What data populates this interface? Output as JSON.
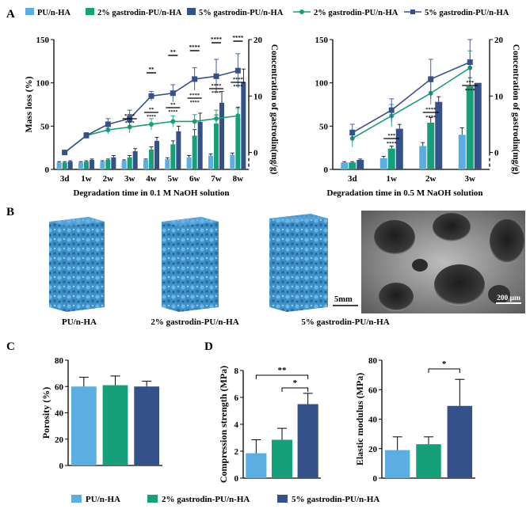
{
  "colors": {
    "c1": "#5aaee2",
    "c2": "#16a07a",
    "c3": "#35518a",
    "axis": "#000000"
  },
  "panel_labels": {
    "a": "A",
    "b": "B",
    "c": "C",
    "d": "D"
  },
  "legend_top": {
    "bar1": "PU/n-HA",
    "bar2": "2% gastrodin-PU/n-HA",
    "bar3": "5% gastrodin-PU/n-HA",
    "line2": "2% gastrodin-PU/n-HA",
    "line3": "5% gastrodin-PU/n-HA"
  },
  "legend_bottom": {
    "l1": "PU/n-HA",
    "l2": "2% gastrodin-PU/n-HA",
    "l3": "5% gastrodin-PU/n-HA"
  },
  "panel_b": {
    "captions": [
      "PU/n-HA",
      "2% gastrodin-PU/n-HA",
      "5% gastrodin-PU/n-HA"
    ],
    "scale_bar_3d": "5mm",
    "scale_bar_sem": "200 μm"
  },
  "chart_data": [
    {
      "id": "A1",
      "type": "bar",
      "title": "",
      "xlabel": "Degradation time in 0.1 M NaOH solution",
      "ylabel": "Mass loss (%)",
      "y2label": "Concentration of gastrodin(mg/g)",
      "categories": [
        "3d",
        "1w",
        "2w",
        "3w",
        "4w",
        "5w",
        "6w",
        "7w",
        "8w"
      ],
      "ylim": [
        0,
        150
      ],
      "yticks": [
        0,
        50,
        100,
        150
      ],
      "y2lim": [
        -3,
        20
      ],
      "y2ticks": [
        0,
        10,
        20
      ],
      "series": [
        {
          "name": "PU/n-HA",
          "values": [
            8,
            8,
            9,
            10,
            11,
            12,
            14,
            16,
            17
          ],
          "errors": [
            1,
            1,
            1,
            1,
            1,
            1.5,
            2,
            2,
            2
          ]
        },
        {
          "name": "2% gastrodin-PU/n-HA",
          "values": [
            8,
            9,
            11,
            14,
            23,
            29,
            39,
            53,
            60
          ],
          "errors": [
            1,
            1,
            1,
            2,
            3,
            4,
            7,
            10,
            12
          ]
        },
        {
          "name": "5% gastrodin-PU/n-HA",
          "values": [
            9,
            11,
            14,
            21,
            33,
            44,
            55,
            77,
            101
          ],
          "errors": [
            1,
            1,
            2,
            3,
            4,
            6,
            10,
            13,
            15
          ]
        }
      ],
      "lines": [
        {
          "name": "2% gastrodin-PU/n-HA",
          "values": [
            0,
            3,
            4,
            4.5,
            5,
            5.5,
            5.5,
            6,
            6.5
          ],
          "errors": [
            0.3,
            0.5,
            0.7,
            1,
            1,
            1,
            1.2,
            1.5,
            1.3
          ]
        },
        {
          "name": "5% gastrodin-PU/n-HA",
          "values": [
            0,
            3,
            5,
            6,
            10,
            10.5,
            13,
            13.5,
            14.5
          ],
          "errors": [
            0.3,
            0.5,
            1,
            1.5,
            0.8,
            1.5,
            2,
            3,
            3
          ]
        }
      ],
      "annotations": [
        "****",
        "**",
        "**",
        "****",
        "****",
        "****"
      ]
    },
    {
      "id": "A2",
      "type": "bar",
      "title": "",
      "xlabel": "Degradation time in 0.5 M NaOH solution",
      "ylabel": "",
      "y2label": "Concentration of gastrodin(mg/g)",
      "categories": [
        "3d",
        "1w",
        "2w",
        "3w"
      ],
      "ylim": [
        0,
        150
      ],
      "yticks": [
        0,
        50,
        100,
        150
      ],
      "y2lim": [
        -3,
        20
      ],
      "y2ticks": [
        0,
        10,
        20
      ],
      "series": [
        {
          "name": "PU/n-HA",
          "values": [
            8,
            13,
            27,
            40
          ],
          "errors": [
            1,
            2,
            4,
            8
          ]
        },
        {
          "name": "2% gastrodin-PU/n-HA",
          "values": [
            8,
            24,
            54,
            96
          ],
          "errors": [
            1,
            3,
            6,
            10
          ]
        },
        {
          "name": "5% gastrodin-PU/n-HA",
          "values": [
            11,
            47,
            78,
            100
          ],
          "errors": [
            1,
            5,
            6,
            0
          ]
        }
      ],
      "lines": [
        {
          "name": "2% gastrodin-PU/n-HA",
          "values": [
            2.5,
            6.5,
            10.5,
            15
          ],
          "errors": [
            1.5,
            2,
            2,
            3
          ]
        },
        {
          "name": "5% gastrodin-PU/n-HA",
          "values": [
            3.5,
            7.5,
            13,
            16
          ],
          "errors": [
            1.5,
            2,
            3.5,
            4
          ]
        }
      ],
      "annotations": [
        "***",
        "****",
        "****",
        "****",
        "***",
        "****"
      ]
    },
    {
      "id": "C",
      "type": "bar",
      "ylabel": "Porosity (%)",
      "categories": [
        "PU/n-HA",
        "2% gastrodin-PU/n-HA",
        "5% gastrodin-PU/n-HA"
      ],
      "ylim": [
        0,
        80
      ],
      "yticks": [
        0,
        20,
        40,
        60,
        80
      ],
      "values": [
        60,
        61,
        60
      ],
      "errors": [
        7,
        7,
        4
      ]
    },
    {
      "id": "D1",
      "type": "bar",
      "ylabel": "Compression strength (MPa)",
      "categories": [
        "PU/n-HA",
        "2% gastrodin-PU/n-HA",
        "5% gastrodin-PU/n-HA"
      ],
      "ylim": [
        0,
        8
      ],
      "yticks": [
        0,
        2,
        4,
        6,
        8
      ],
      "values": [
        1.85,
        2.85,
        5.5
      ],
      "errors": [
        1,
        0.85,
        0.8
      ],
      "annotations": [
        "**",
        "*"
      ]
    },
    {
      "id": "D2",
      "type": "bar",
      "ylabel": "Elastic modulus (MPa)",
      "categories": [
        "PU/n-HA",
        "2% gastrodin-PU/n-HA",
        "5% gastrodin-PU/n-HA"
      ],
      "ylim": [
        0,
        80
      ],
      "yticks": [
        0,
        20,
        40,
        60,
        80
      ],
      "values": [
        19,
        23,
        49
      ],
      "errors": [
        9,
        5,
        18
      ],
      "annotations": [
        "*"
      ]
    }
  ]
}
